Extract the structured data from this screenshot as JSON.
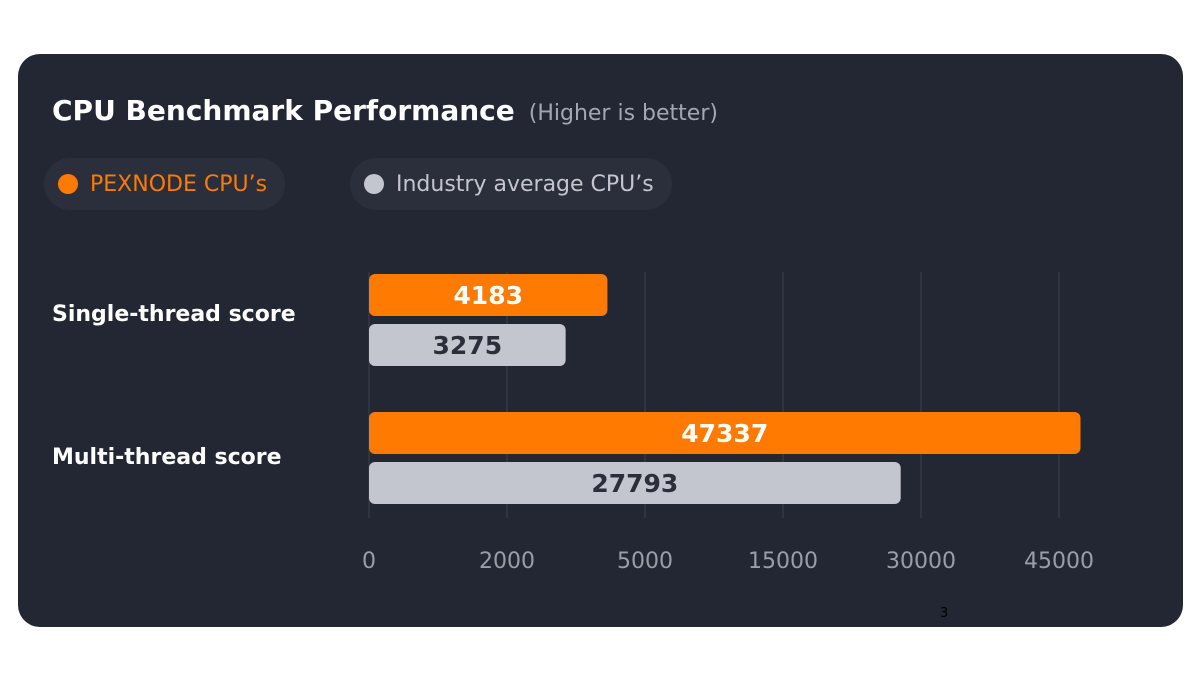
{
  "colors": {
    "card": "#232733",
    "orange": "#ff7a00",
    "grey": "#c3c6ce",
    "grid": "#3b404c",
    "tick": "#9a9ea8",
    "orange_label": "#ffffff",
    "grey_label": "#2b2f3a"
  },
  "page_number": "3",
  "chart_data": {
    "type": "bar",
    "orientation": "horizontal",
    "title": "CPU Benchmark Performance",
    "subtitle": "(Higher is better)",
    "categories": [
      "Single-thread score",
      "Multi-thread score"
    ],
    "series": [
      {
        "name": "PEXNODE CPU’s",
        "color": "#ff7a00",
        "values": [
          4183,
          47337
        ]
      },
      {
        "name": "Industry average CPU’s",
        "color": "#c3c6ce",
        "values": [
          3275,
          27793
        ]
      }
    ],
    "x_ticks": [
      0,
      2000,
      5000,
      15000,
      30000,
      45000
    ],
    "x_tick_labels": [
      "0",
      "2000",
      "5000",
      "15000",
      "30000",
      "45000"
    ],
    "axis_scale": "piecewise (ticks evenly spaced)",
    "grid": true,
    "legend_position": "top-left"
  }
}
